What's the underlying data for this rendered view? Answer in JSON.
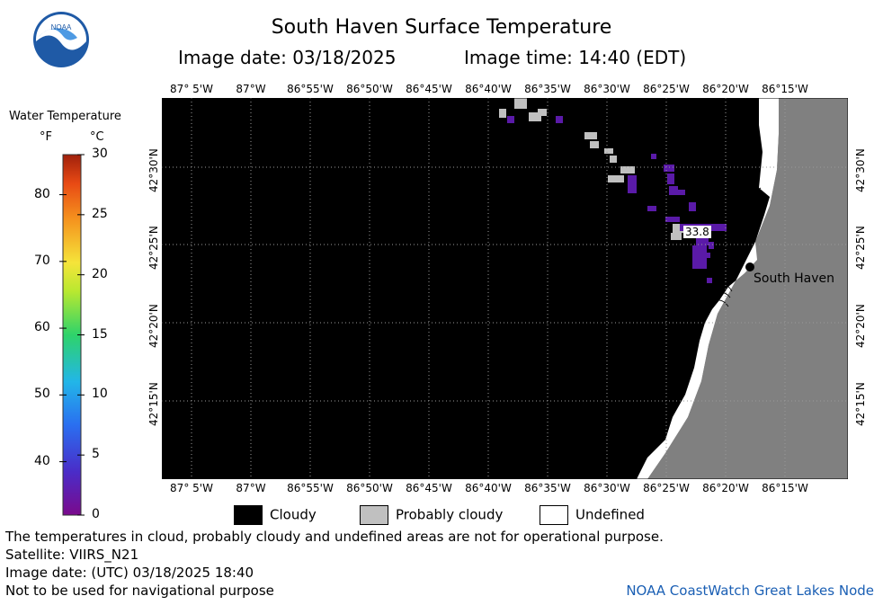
{
  "header": {
    "title": "South Haven Surface Temperature",
    "image_date": "Image date: 03/18/2025",
    "image_time": "Image time: 14:40 (EDT)"
  },
  "logo": {
    "text": "NOAA",
    "icon": "noaa-logo-icon"
  },
  "colorbar": {
    "title": "Water Temperature",
    "unit_f": "°F",
    "unit_c": "°C",
    "f_ticks": [
      "80",
      "70",
      "60",
      "50",
      "40"
    ],
    "c_ticks": [
      "30",
      "25",
      "20",
      "15",
      "10",
      "5",
      "0"
    ]
  },
  "map": {
    "lon_labels": [
      "87° 5'W",
      "87°W",
      "86°55'W",
      "86°50'W",
      "86°45'W",
      "86°40'W",
      "86°35'W",
      "86°30'W",
      "86°25'W",
      "86°20'W",
      "86°15'W"
    ],
    "lat_labels": [
      "42°30'N",
      "42°25'N",
      "42°20'N",
      "42°15'N"
    ],
    "city": "South Haven",
    "readout": "33.8",
    "colors": {
      "cloudy": "#000000",
      "probably_cloudy": "#c0c0c0",
      "undefined": "#ffffff",
      "land": "#808080",
      "cold_water": "#5a1aa8"
    }
  },
  "legend": {
    "cloudy": "Cloudy",
    "probably_cloudy": "Probably cloudy",
    "undefined": "Undefined"
  },
  "footer": {
    "disclaimer": "The temperatures in cloud, probably cloudy and undefined areas are not for operational purpose.",
    "satellite": "Satellite: VIIRS_N21",
    "utc_date": "Image date: (UTC) 03/18/2025  18:40",
    "navigation": "Not to be used for navigational purpose",
    "credit": "NOAA CoastWatch Great Lakes Node"
  }
}
